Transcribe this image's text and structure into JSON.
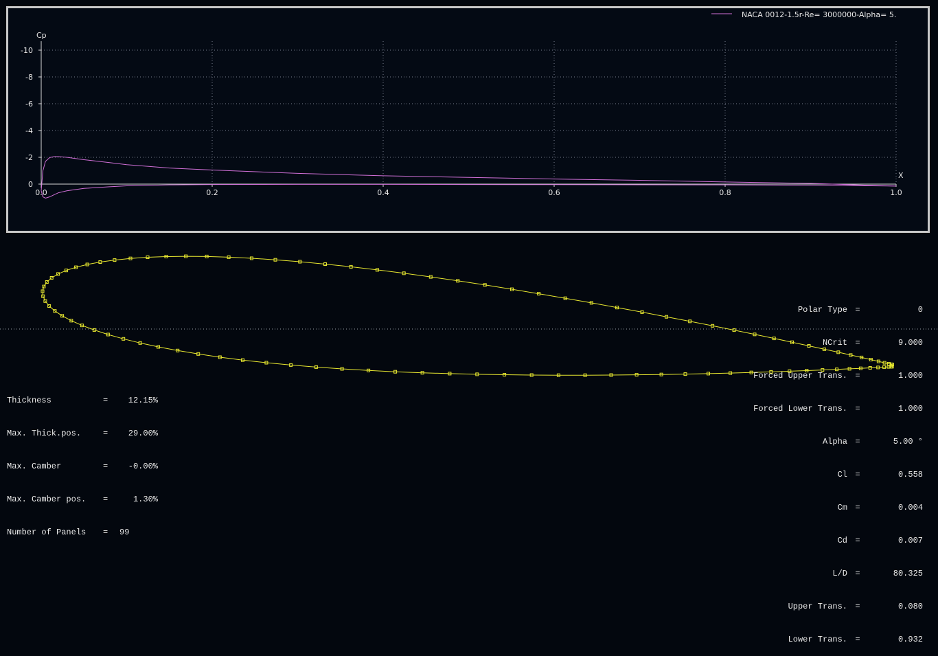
{
  "cp_plot": {
    "legend": "NACA 0012-1.5r-Re= 3000000-Alpha= 5.",
    "y_label": "Cp",
    "x_label": "X",
    "x_ticks": [
      "0.0",
      "0.2",
      "0.4",
      "0.6",
      "0.8",
      "1.0"
    ],
    "y_ticks": [
      "-10",
      "-8",
      "-6",
      "-4",
      "-2",
      "0"
    ],
    "colors": {
      "curve": "#d070d8",
      "axis": "#d8d8d8",
      "grid": "#7a8090",
      "frame": "#c8c8c8"
    }
  },
  "chart_data": {
    "type": "line",
    "title": "",
    "xlabel": "X",
    "ylabel": "Cp",
    "xlim": [
      0,
      1
    ],
    "ylim": [
      0,
      -10
    ],
    "grid": true,
    "legend_position": "top-right",
    "series": [
      {
        "name": "NACA 0012-1.5r-Re= 3000000-Alpha= 5.",
        "x": [
          0,
          0.002,
          0.005,
          0.01,
          0.015,
          0.02,
          0.03,
          0.05,
          0.08,
          0.1,
          0.15,
          0.2,
          0.3,
          0.4,
          0.5,
          0.6,
          0.7,
          0.8,
          0.9,
          1.0
        ],
        "y_upper": [
          0.5,
          -1.0,
          -1.7,
          -1.98,
          -2.05,
          -2.05,
          -2.0,
          -1.82,
          -1.6,
          -1.45,
          -1.2,
          -1.05,
          -0.8,
          -0.62,
          -0.5,
          -0.38,
          -0.28,
          -0.16,
          -0.05,
          0.15
        ],
        "y_lower": [
          0.5,
          0.95,
          1.05,
          0.95,
          0.8,
          0.65,
          0.5,
          0.32,
          0.2,
          0.13,
          0.06,
          0.03,
          0.02,
          0.02,
          0.03,
          0.04,
          0.05,
          0.06,
          0.08,
          0.15
        ]
      }
    ]
  },
  "airfoil": {
    "name": "NACA 0012",
    "alpha_deg": 5,
    "thickness": 0.1215,
    "panels": 99,
    "colors": {
      "outline": "#e8e830"
    }
  },
  "geometry_info": [
    {
      "label": "Thickness",
      "value": "12.15%"
    },
    {
      "label": "Max. Thick.pos.",
      "value": "29.00%"
    },
    {
      "label": "Max. Camber",
      "value": "-0.00%"
    },
    {
      "label": "Max. Camber pos.",
      "value": " 1.30%"
    },
    {
      "label": "Number of Panels",
      "value": "99"
    }
  ],
  "polar_info": [
    {
      "label": "Polar Type",
      "value": "0"
    },
    {
      "label": "NCrit",
      "value": "9.000"
    },
    {
      "label": "Forced Upper Trans.",
      "value": "1.000"
    },
    {
      "label": "Forced Lower Trans.",
      "value": "1.000"
    },
    {
      "label": "Alpha",
      "value": "5.00 °"
    },
    {
      "label": "Cl",
      "value": "0.558"
    },
    {
      "label": "Cm",
      "value": "0.004"
    },
    {
      "label": "Cd",
      "value": "0.007"
    },
    {
      "label": "L/D",
      "value": "80.325"
    },
    {
      "label": "Upper Trans.",
      "value": "0.080"
    },
    {
      "label": "Lower Trans.",
      "value": "0.932"
    }
  ]
}
